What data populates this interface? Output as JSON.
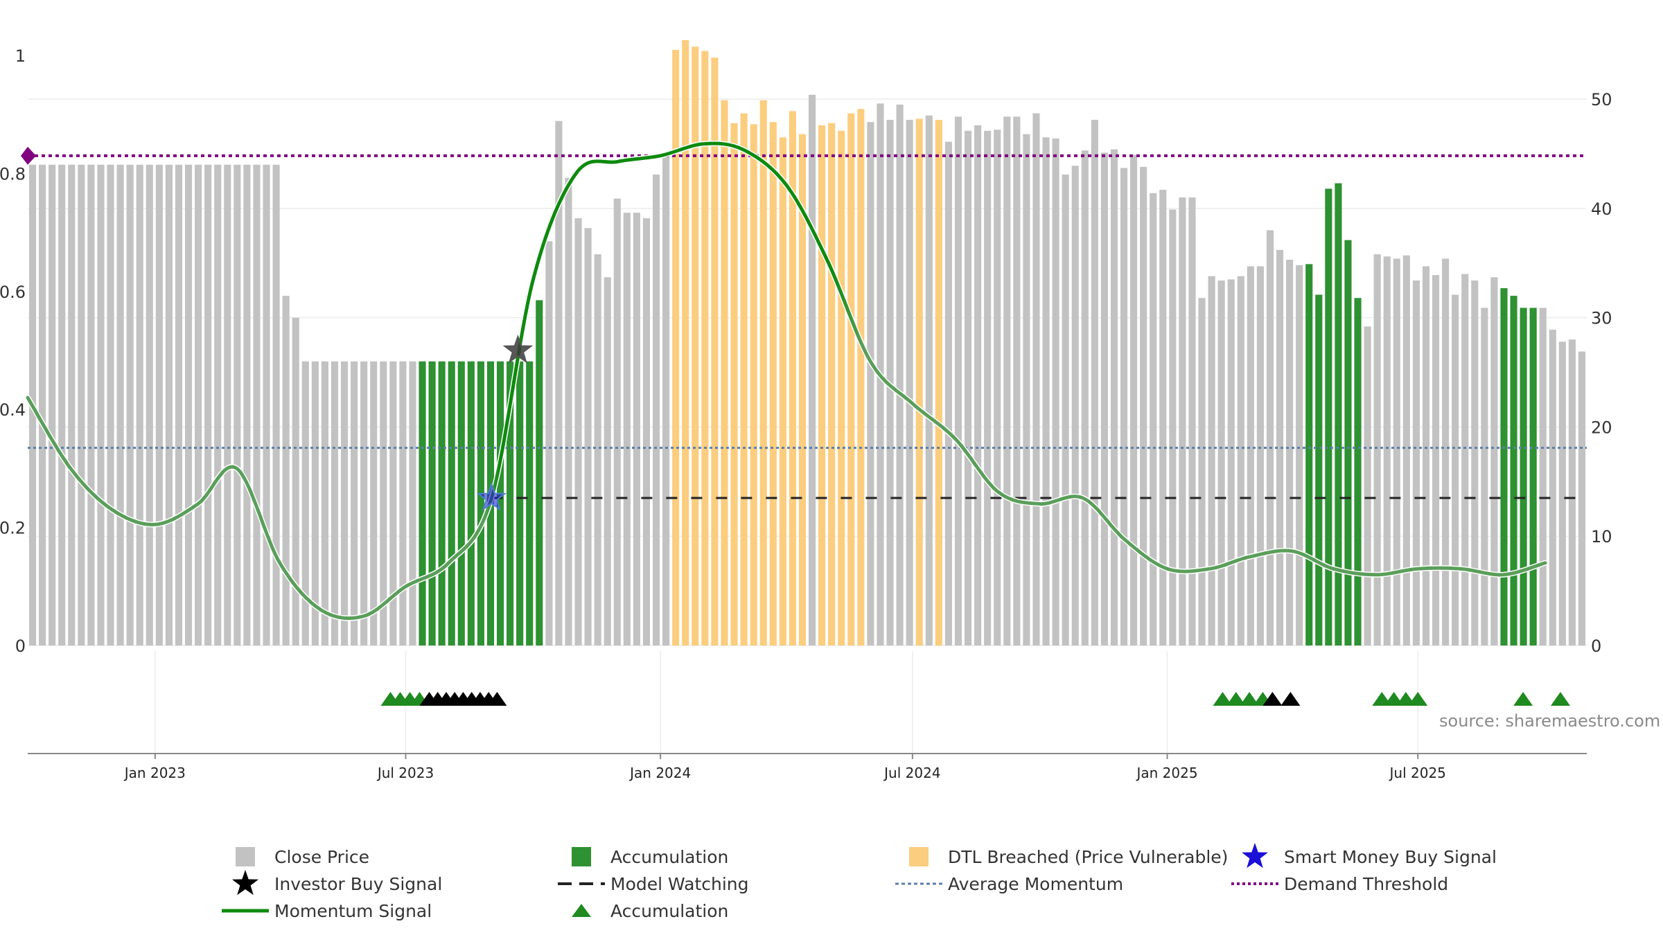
{
  "chart_data": {
    "type": "bar",
    "title": "",
    "source": "source: sharemaestro.com",
    "x_range": [
      "2022-10-01",
      "2025-10-31"
    ],
    "x_ticks": [
      "Jan 2023",
      "Jul 2023",
      "Jan 2024",
      "Jul 2024",
      "Jan 2025",
      "Jul 2025"
    ],
    "left_axis": {
      "range": [
        0,
        1
      ],
      "ticks": [
        "0",
        "0.2",
        "0.4",
        "0.6",
        "0.8",
        "1"
      ],
      "label": ""
    },
    "right_axis": {
      "range": [
        0,
        54
      ],
      "ticks": [
        "0",
        "10",
        "20",
        "30",
        "40",
        "50"
      ],
      "label": ""
    },
    "series": [
      {
        "name": "Close Price",
        "axis": "right",
        "values": [
          44,
          44,
          44,
          44,
          44,
          44,
          44,
          44,
          44,
          44,
          44,
          44,
          44,
          44,
          44,
          44,
          44,
          44,
          44,
          44,
          44,
          44,
          44,
          44,
          44,
          44,
          32,
          30,
          26,
          26,
          26,
          26,
          26,
          26,
          26,
          26,
          26,
          26,
          26,
          26,
          26,
          26,
          26,
          26,
          26,
          26,
          26,
          26,
          26,
          26,
          26,
          26,
          31.6,
          37,
          48,
          42.8,
          39.1,
          38.2,
          35.8,
          33.7,
          40.9,
          39.6,
          39.6,
          39.1,
          43.1,
          45,
          54.5,
          55.4,
          54.8,
          54.4,
          53.8,
          49.9,
          47.8,
          48.7,
          47.7,
          49.9,
          47.9,
          46.5,
          48.9,
          46.8,
          50.4,
          47.6,
          47.8,
          47.1,
          48.7,
          49.1,
          47.9,
          49.6,
          48.1,
          49.5,
          48.1,
          48.2,
          48.5,
          48.1,
          46.1,
          48.4,
          47.1,
          47.6,
          47.1,
          47.2,
          48.4,
          48.4,
          46.8,
          48.7,
          46.5,
          46.4,
          43.1,
          43.9,
          45.3,
          48.1,
          45.1,
          45.4,
          43.7,
          44.9,
          43.8,
          41.4,
          41.7,
          39.9,
          41,
          41,
          31.8,
          33.8,
          33.4,
          33.5,
          33.8,
          34.7,
          34.7,
          38,
          36.2,
          35.3,
          34.8,
          34.9,
          32.1,
          41.8,
          42.3,
          37.1,
          31.8,
          29.2,
          35.8,
          35.6,
          35.4,
          35.7,
          33.4,
          34.7,
          33.9,
          35.4,
          32.1,
          34,
          33.4,
          30.9,
          33.7,
          32.7,
          32,
          30.9,
          30.9,
          30.9,
          28.9,
          27.8,
          28,
          26.9
        ],
        "colors": [
          "gray",
          "gray",
          "gray",
          "gray",
          "gray",
          "gray",
          "gray",
          "gray",
          "gray",
          "gray",
          "gray",
          "gray",
          "gray",
          "gray",
          "gray",
          "gray",
          "gray",
          "gray",
          "gray",
          "gray",
          "gray",
          "gray",
          "gray",
          "gray",
          "gray",
          "gray",
          "gray",
          "gray",
          "gray",
          "gray",
          "gray",
          "gray",
          "gray",
          "gray",
          "gray",
          "gray",
          "gray",
          "gray",
          "gray",
          "gray",
          "green",
          "green",
          "green",
          "green",
          "green",
          "green",
          "green",
          "green",
          "green",
          "green",
          "green",
          "green",
          "green",
          "gray",
          "gray",
          "gray",
          "gray",
          "gray",
          "gray",
          "gray",
          "gray",
          "gray",
          "gray",
          "gray",
          "gray",
          "gray",
          "orange",
          "orange",
          "orange",
          "orange",
          "orange",
          "orange",
          "orange",
          "orange",
          "orange",
          "orange",
          "orange",
          "orange",
          "orange",
          "orange",
          "gray",
          "orange",
          "orange",
          "orange",
          "orange",
          "orange",
          "gray",
          "gray",
          "gray",
          "gray",
          "gray",
          "orange",
          "gray",
          "orange",
          "gray",
          "gray",
          "gray",
          "gray",
          "gray",
          "gray",
          "gray",
          "gray",
          "gray",
          "gray",
          "gray",
          "gray",
          "gray",
          "gray",
          "gray",
          "gray",
          "gray",
          "gray",
          "gray",
          "gray",
          "gray",
          "gray",
          "gray",
          "gray",
          "gray",
          "gray",
          "gray",
          "gray",
          "gray",
          "gray",
          "gray",
          "gray",
          "gray",
          "gray",
          "gray",
          "gray",
          "gray",
          "green",
          "green",
          "green",
          "green",
          "green",
          "green",
          "gray",
          "gray",
          "gray",
          "gray",
          "gray",
          "gray",
          "gray",
          "gray",
          "gray",
          "gray",
          "gray",
          "gray",
          "gray",
          "gray",
          "green",
          "green",
          "green",
          "green",
          "gray",
          "gray",
          "gray",
          "gray",
          "gray",
          "gray",
          "green",
          "gray",
          "green",
          "gray"
        ]
      },
      {
        "name": "Momentum Signal",
        "axis": "left",
        "x": [
          "2022-10-01",
          "2022-11-01",
          "2022-12-01",
          "2023-01-01",
          "2023-02-01",
          "2023-03-01",
          "2023-04-01",
          "2023-05-01",
          "2023-06-01",
          "2023-07-01",
          "2023-08-01",
          "2023-09-01",
          "2023-10-01",
          "2023-11-01",
          "2023-12-01",
          "2024-01-01",
          "2024-02-01",
          "2024-03-01",
          "2024-04-01",
          "2024-05-01",
          "2024-06-01",
          "2024-07-01",
          "2024-08-01",
          "2024-09-01",
          "2024-10-01",
          "2024-11-01",
          "2024-12-01",
          "2025-01-01",
          "2025-02-01",
          "2025-03-01",
          "2025-04-01",
          "2025-05-01",
          "2025-06-01",
          "2025-07-01",
          "2025-08-01",
          "2025-09-01",
          "2025-10-01"
        ],
        "values": [
          0.42,
          0.3,
          0.23,
          0.205,
          0.24,
          0.3,
          0.14,
          0.06,
          0.05,
          0.1,
          0.14,
          0.25,
          0.62,
          0.8,
          0.82,
          0.83,
          0.85,
          0.84,
          0.78,
          0.65,
          0.48,
          0.41,
          0.35,
          0.26,
          0.24,
          0.25,
          0.18,
          0.13,
          0.13,
          0.15,
          0.16,
          0.13,
          0.12,
          0.13,
          0.13,
          0.12,
          0.14
        ]
      }
    ],
    "reference_lines": [
      {
        "name": "Average Momentum",
        "axis": "left",
        "value": 0.335
      },
      {
        "name": "Demand Threshold",
        "axis": "left",
        "value": 0.83
      },
      {
        "name": "Model Watching",
        "axis": "left",
        "value": 0.25,
        "from": "2023-09-01",
        "to": "2025-10-31"
      }
    ],
    "markers": [
      {
        "name": "Smart Money Buy Signal",
        "axis": "left",
        "x": "2023-09-01",
        "value": 0.25
      },
      {
        "name": "Investor Buy Signal",
        "axis": "left",
        "x": "2023-09-20",
        "value": 0.5
      }
    ],
    "triangle_markers": [
      {
        "type": "green",
        "count": 4,
        "from": "2023-06-20",
        "to": "2023-07-11"
      },
      {
        "type": "black",
        "count": 9,
        "from": "2023-07-18",
        "to": "2023-09-05"
      },
      {
        "type": "green",
        "count": 4,
        "from": "2025-02-10",
        "to": "2025-03-11"
      },
      {
        "type": "black",
        "count": 2,
        "from": "2025-03-18",
        "to": "2025-03-31"
      },
      {
        "type": "green",
        "count": 4,
        "from": "2025-06-05",
        "to": "2025-07-01"
      },
      {
        "type": "green",
        "count": 2,
        "from": "2025-09-15",
        "to": "2025-10-12"
      }
    ],
    "legend": [
      {
        "label": "Close Price",
        "symbol": "gray-square"
      },
      {
        "label": "Accumulation",
        "symbol": "green-square"
      },
      {
        "label": "DTL Breached (Price Vulnerable)",
        "symbol": "orange-square"
      },
      {
        "label": "Smart Money Buy Signal",
        "symbol": "blue-star"
      },
      {
        "label": "Investor Buy Signal",
        "symbol": "black-star"
      },
      {
        "label": "Model Watching",
        "symbol": "black-dash"
      },
      {
        "label": "Average Momentum",
        "symbol": "blue-dots"
      },
      {
        "label": "Demand Threshold",
        "symbol": "purple-dots"
      },
      {
        "label": "Momentum Signal",
        "symbol": "green-line"
      },
      {
        "label": "Accumulation",
        "symbol": "green-triangle"
      }
    ],
    "colors": {
      "gray": "#c2c2c2",
      "green": "#2e9132",
      "orange": "#fbcd7e",
      "momentum": "#0e8a0e",
      "momentum_faded": "#5a9e5a",
      "average": "#5b7fa8",
      "threshold": "#800080",
      "watching": "#222222",
      "smart_money": "#1a10d8",
      "investor": "#000000",
      "triangle_green": "#1f8a1f",
      "triangle_black": "#000000",
      "grid": "#ececec",
      "axis": "#888888"
    }
  }
}
